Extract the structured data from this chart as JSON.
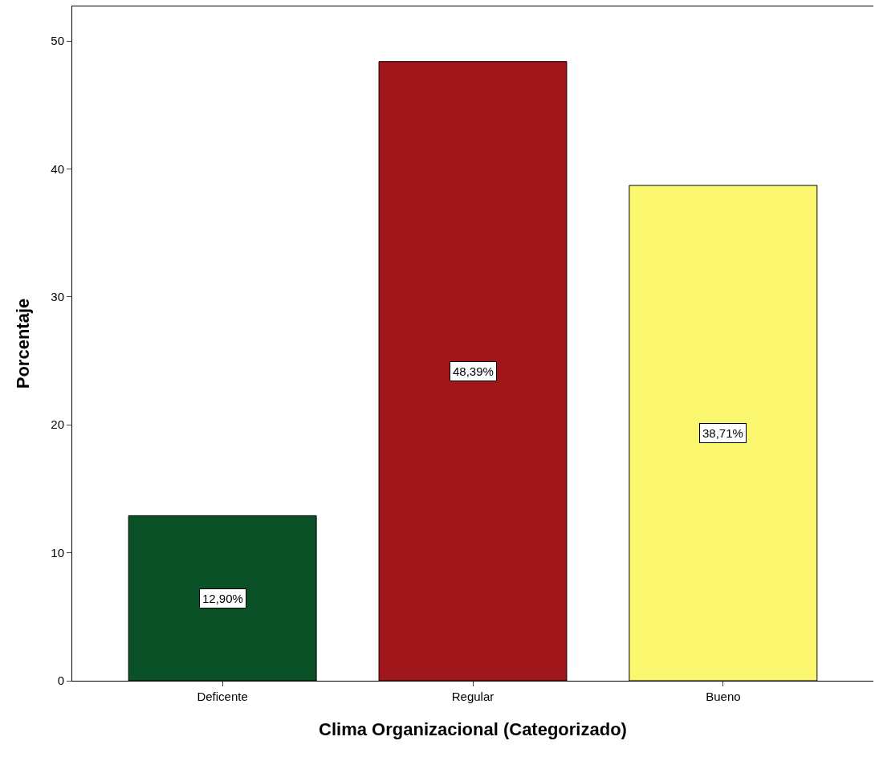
{
  "chart_data": {
    "type": "bar",
    "xlabel": "Clima Organizacional (Categorizado)",
    "ylabel": "Porcentaje",
    "categories": [
      "Deficente",
      "Regular",
      "Bueno"
    ],
    "values": [
      12.9,
      48.39,
      38.71
    ],
    "colors": [
      "#0b5128",
      "#a0161a",
      "#fbf76e"
    ],
    "value_labels": [
      "12,90%",
      "48,39%",
      "38,71%"
    ],
    "ylim": [
      0,
      52.7
    ],
    "yticks": [
      0,
      10,
      20,
      30,
      40,
      50
    ]
  }
}
